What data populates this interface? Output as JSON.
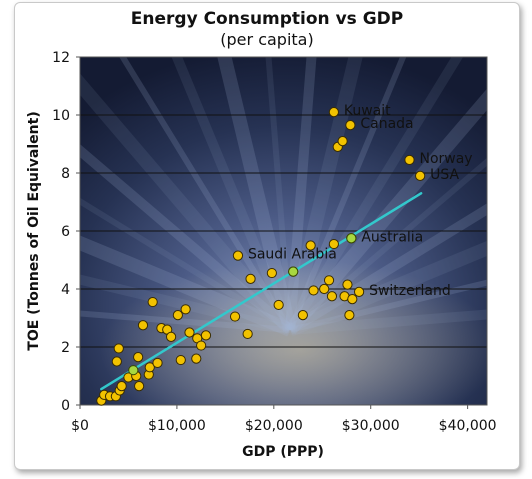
{
  "chart_data": {
    "type": "scatter",
    "title": "Energy Consumption vs GDP",
    "subtitle": "(per capita)",
    "xlabel": "GDP (PPP)",
    "ylabel": "TOE (Tonnes of Oil Equivalent)",
    "xlim": [
      0,
      42000
    ],
    "ylim": [
      0,
      12
    ],
    "x_ticks": [
      0,
      10000,
      20000,
      30000,
      40000
    ],
    "x_tick_labels": [
      "$0",
      "$10,000",
      "$20,000",
      "$30,000",
      "$40,000"
    ],
    "y_ticks": [
      0,
      2,
      4,
      6,
      8,
      10,
      12
    ],
    "y_tick_labels": [
      "0",
      "2",
      "4",
      "6",
      "8",
      "10",
      "12"
    ],
    "grid": "horizontal",
    "point_color": "#f2c200",
    "highlight_color": "#a8d840",
    "trend_color": "#33c8cc",
    "trendline": {
      "x": [
        2200,
        35200
      ],
      "y": [
        0.55,
        7.3
      ]
    },
    "points": [
      {
        "x": 2200,
        "y": 0.15
      },
      {
        "x": 2500,
        "y": 0.35
      },
      {
        "x": 3100,
        "y": 0.3
      },
      {
        "x": 3700,
        "y": 0.3
      },
      {
        "x": 4100,
        "y": 0.5
      },
      {
        "x": 4300,
        "y": 0.65
      },
      {
        "x": 5000,
        "y": 0.95
      },
      {
        "x": 5800,
        "y": 1.0
      },
      {
        "x": 6100,
        "y": 0.65
      },
      {
        "x": 7100,
        "y": 1.05
      },
      {
        "x": 3800,
        "y": 1.5
      },
      {
        "x": 4000,
        "y": 1.95
      },
      {
        "x": 6000,
        "y": 1.65
      },
      {
        "x": 7200,
        "y": 1.3
      },
      {
        "x": 8000,
        "y": 1.45
      },
      {
        "x": 6500,
        "y": 2.75
      },
      {
        "x": 7500,
        "y": 3.55
      },
      {
        "x": 8400,
        "y": 2.65
      },
      {
        "x": 9000,
        "y": 2.6
      },
      {
        "x": 9400,
        "y": 2.35
      },
      {
        "x": 10100,
        "y": 3.1
      },
      {
        "x": 10400,
        "y": 1.55
      },
      {
        "x": 10900,
        "y": 3.3
      },
      {
        "x": 11300,
        "y": 2.5
      },
      {
        "x": 12000,
        "y": 1.6
      },
      {
        "x": 12100,
        "y": 2.3
      },
      {
        "x": 12500,
        "y": 2.05
      },
      {
        "x": 13000,
        "y": 2.4
      },
      {
        "x": 16000,
        "y": 3.05
      },
      {
        "x": 16300,
        "y": 5.15
      },
      {
        "x": 17300,
        "y": 2.45
      },
      {
        "x": 17600,
        "y": 4.35
      },
      {
        "x": 19800,
        "y": 4.55
      },
      {
        "x": 20500,
        "y": 3.45
      },
      {
        "x": 22000,
        "y": 4.6
      },
      {
        "x": 23000,
        "y": 3.1
      },
      {
        "x": 23800,
        "y": 5.5
      },
      {
        "x": 24100,
        "y": 3.95
      },
      {
        "x": 25200,
        "y": 4.0
      },
      {
        "x": 25700,
        "y": 4.3
      },
      {
        "x": 26000,
        "y": 3.75
      },
      {
        "x": 26200,
        "y": 5.55
      },
      {
        "x": 27300,
        "y": 3.75
      },
      {
        "x": 27600,
        "y": 4.15
      },
      {
        "x": 27800,
        "y": 3.1
      },
      {
        "x": 28100,
        "y": 3.65
      },
      {
        "x": 28800,
        "y": 3.9
      },
      {
        "x": 28000,
        "y": 5.75
      },
      {
        "x": 26200,
        "y": 10.1
      },
      {
        "x": 27900,
        "y": 9.65
      },
      {
        "x": 26600,
        "y": 8.9
      },
      {
        "x": 27100,
        "y": 9.1
      },
      {
        "x": 34000,
        "y": 8.45
      },
      {
        "x": 35100,
        "y": 7.9
      }
    ],
    "highlighted_points": [
      {
        "x": 5500,
        "y": 1.2
      },
      {
        "x": 22000,
        "y": 4.6
      },
      {
        "x": 28000,
        "y": 5.75
      }
    ],
    "annotations": [
      {
        "text": "Kuwait",
        "x": 26200,
        "y": 10.1
      },
      {
        "text": "Canada",
        "x": 27900,
        "y": 9.65
      },
      {
        "text": "Norway",
        "x": 34000,
        "y": 8.45
      },
      {
        "text": "USA",
        "x": 35100,
        "y": 7.9
      },
      {
        "text": "Australia",
        "x": 28000,
        "y": 5.75
      },
      {
        "text": "Saudi Arabia",
        "x": 16300,
        "y": 5.15
      },
      {
        "text": "Switzerland",
        "x": 28800,
        "y": 3.9
      }
    ]
  }
}
